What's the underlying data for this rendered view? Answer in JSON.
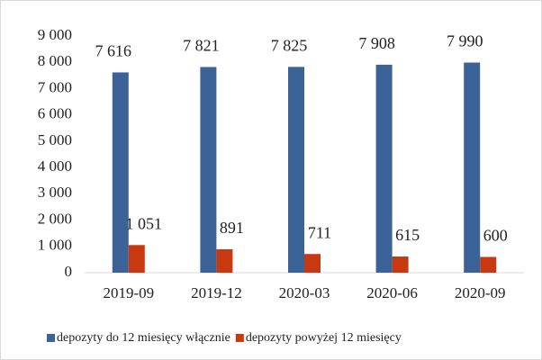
{
  "chart_data": {
    "type": "bar",
    "categories": [
      "2019-09",
      "2019-12",
      "2020-03",
      "2020-06",
      "2020-09"
    ],
    "series": [
      {
        "name": "depozyty do 12 miesięcy włącznie",
        "color": "#3b6398",
        "values": [
          7616,
          7821,
          7825,
          7908,
          7990
        ],
        "value_labels": [
          "7 616",
          "7 821",
          "7 825",
          "7 908",
          "7 990"
        ]
      },
      {
        "name": "depozyty powyżej 12 miesięcy",
        "color": "#c8390f",
        "values": [
          1051,
          891,
          711,
          615,
          600
        ],
        "value_labels": [
          "1 051",
          "891",
          "711",
          "615",
          "600"
        ]
      }
    ],
    "ylim": [
      0,
      9000
    ],
    "yticks": [
      0,
      {
        "value": 1000,
        "label": "1 000"
      },
      {
        "value": 2000,
        "label": "2 000"
      },
      {
        "value": 3000,
        "label": "3 000"
      },
      {
        "value": 4000,
        "label": "4 000"
      },
      {
        "value": 5000,
        "label": "5 000"
      },
      {
        "value": 6000,
        "label": "6 000"
      },
      {
        "value": 7000,
        "label": "7 000"
      },
      {
        "value": 8000,
        "label": "8 000"
      },
      {
        "value": 9000,
        "label": "9 000"
      }
    ],
    "grid": false
  }
}
